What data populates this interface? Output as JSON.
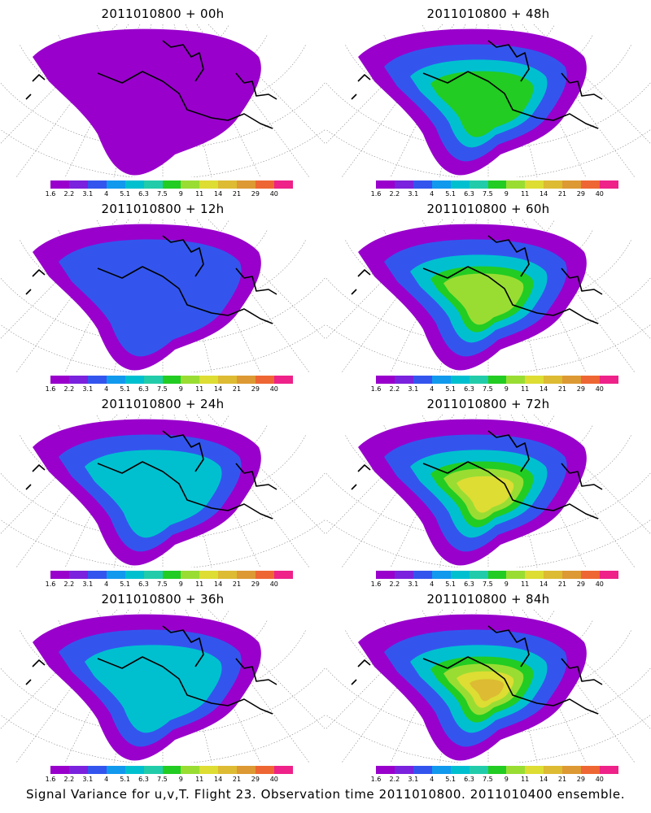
{
  "palette": [
    "#9900cc",
    "#7a22dd",
    "#3355ee",
    "#1199ee",
    "#00c0d0",
    "#22ccaa",
    "#22cc22",
    "#99dd33",
    "#dddd33",
    "#ddbb33",
    "#dd9933",
    "#ee6633",
    "#ee2288"
  ],
  "colorbar_ticks": [
    "1.6",
    "2.2",
    "3.1",
    "4",
    "5.1",
    "6.3",
    "7.5",
    "9",
    "11",
    "14",
    "21",
    "29",
    "40"
  ],
  "panels": [
    {
      "title": "2011010800  + 00h",
      "level": 0
    },
    {
      "title": "2011010800  + 48h",
      "level": 3
    },
    {
      "title": "2011010800  + 12h",
      "level": 1
    },
    {
      "title": "2011010800  + 60h",
      "level": 4
    },
    {
      "title": "2011010800  + 24h",
      "level": 2
    },
    {
      "title": "2011010800  + 72h",
      "level": 5
    },
    {
      "title": "2011010800  + 36h",
      "level": 2
    },
    {
      "title": "2011010800  + 84h",
      "level": 6
    }
  ],
  "caption": "Signal Variance for u,v,T. Flight 23. Observation time 2011010800. 2011010400 ensemble."
}
